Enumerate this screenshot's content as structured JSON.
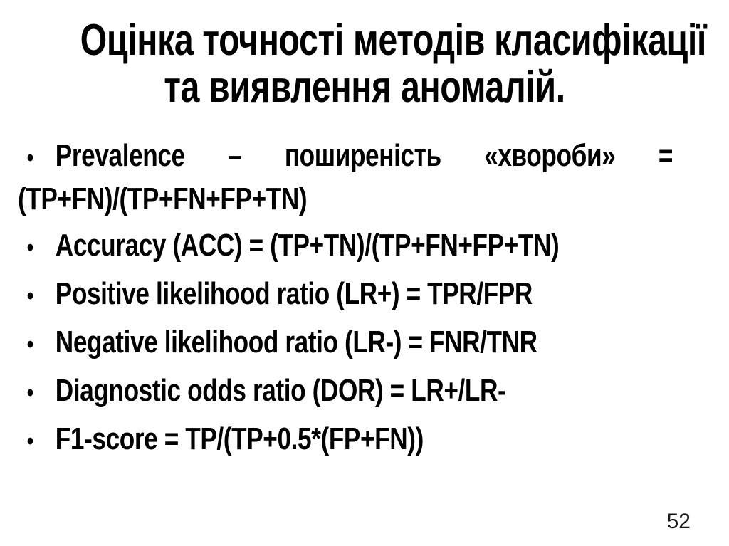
{
  "slide": {
    "title_lines": {
      "line1": "Оцінка точності методів класифікації",
      "line2": "та виявлення аномалій."
    },
    "bullet_char": "•",
    "bullets": [
      "Prevalence – поширеність «хвороби» = (TP+FN)/(TP+FN+FP+TN)",
      "Accuracy (ACC) = (TP+TN)/(TP+FN+FP+TN)",
      "Positive likelihood ratio (LR+) = TPR/FPR",
      "Negative likelihood ratio (LR-) = FNR/TNR",
      "Diagnostic odds ratio (DOR) = LR+/LR-",
      "F1-score = TP/(TP+0.5*(FP+FN))"
    ],
    "page_number": "52",
    "colors": {
      "background": "#FFFFFF",
      "text": "#000000"
    }
  }
}
